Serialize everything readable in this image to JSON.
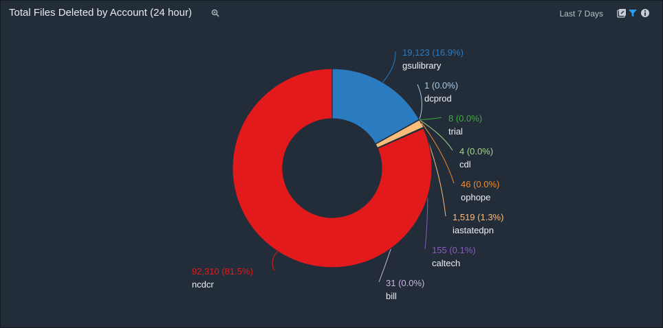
{
  "header": {
    "title": "Total Files Deleted by Account (24 hour)",
    "range_label": "Last 7 Days",
    "icons": [
      "zoom-icon",
      "export-icon",
      "filter-icon",
      "info-icon"
    ]
  },
  "chart_data": {
    "type": "pie",
    "donut": true,
    "title": "Total Files Deleted by Account (24 hour)",
    "slices": [
      {
        "name": "gsulibrary",
        "value": 19123,
        "value_label": "19,123",
        "percent_label": "16.9%",
        "color": "#2a7bbf"
      },
      {
        "name": "dcprod",
        "value": 1,
        "value_label": "1",
        "percent_label": "0.0%",
        "color": "#a9cbe6"
      },
      {
        "name": "trial",
        "value": 8,
        "value_label": "8",
        "percent_label": "0.0%",
        "color": "#3fae3f"
      },
      {
        "name": "cdl",
        "value": 4,
        "value_label": "4",
        "percent_label": "0.0%",
        "color": "#a3d98c"
      },
      {
        "name": "ophope",
        "value": 46,
        "value_label": "46",
        "percent_label": "0.0%",
        "color": "#f58a2a"
      },
      {
        "name": "iastatedpn",
        "value": 1519,
        "value_label": "1,519",
        "percent_label": "1.3%",
        "color": "#fbbe7a"
      },
      {
        "name": "caltech",
        "value": 155,
        "value_label": "155",
        "percent_label": "0.1%",
        "color": "#8a5cc4"
      },
      {
        "name": "bill",
        "value": 31,
        "value_label": "31",
        "percent_label": "0.0%",
        "color": "#c7b7e0"
      },
      {
        "name": "ncdcr",
        "value": 92310,
        "value_label": "92,310",
        "percent_label": "81.5%",
        "color": "#e31a1c"
      }
    ]
  }
}
